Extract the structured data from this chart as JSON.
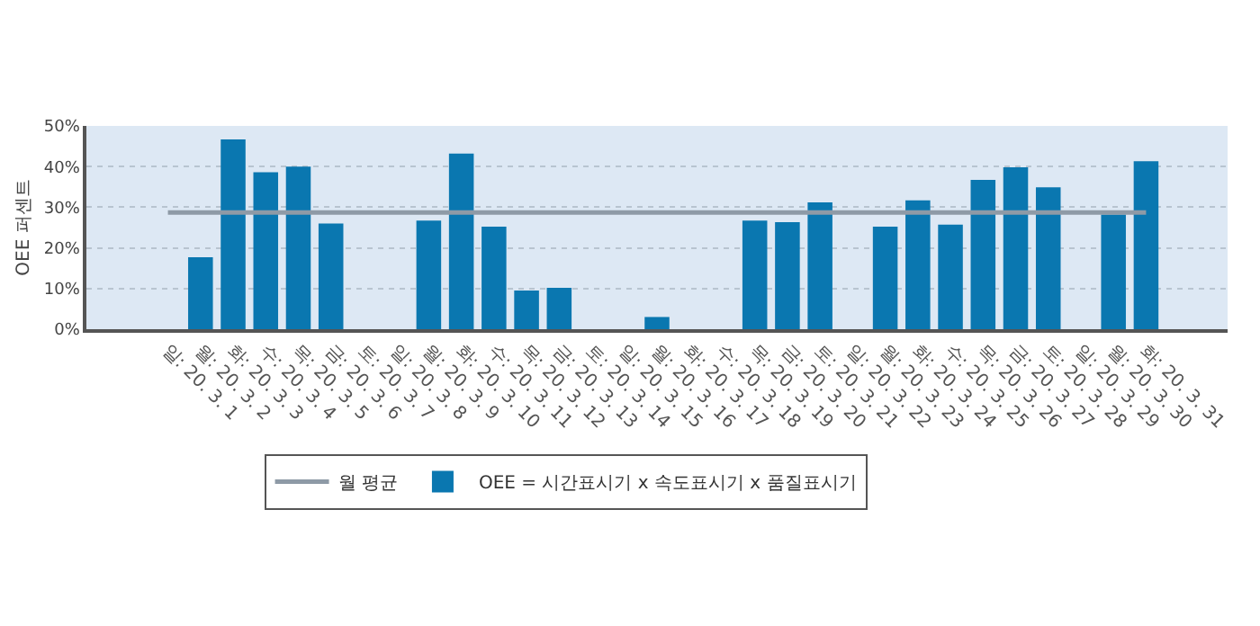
{
  "chart_data": {
    "type": "bar",
    "ylabel": "OEE 퍼센트",
    "categories": [
      "일: 20. 3. 1",
      "월: 20. 3. 2",
      "화: 20. 3. 3",
      "수: 20. 3. 4",
      "목: 20. 3. 5",
      "금: 20. 3. 6",
      "토: 20. 3. 7",
      "일: 20. 3. 8",
      "월: 20. 3. 9",
      "화: 20. 3. 10",
      "수: 20. 3. 11",
      "목: 20. 3. 12",
      "금: 20. 3. 13",
      "토: 20. 3. 14",
      "일: 20. 3. 15",
      "월: 20. 3. 16",
      "화: 20. 3. 17",
      "수: 20. 3. 18",
      "목: 20. 3. 19",
      "금: 20. 3. 20",
      "토: 20. 3. 21",
      "일: 20. 3. 22",
      "월: 20. 3. 23",
      "화: 20. 3. 24",
      "수: 20. 3. 25",
      "목: 20. 3. 26",
      "금: 20. 3. 27",
      "토: 20. 3. 28",
      "일: 20. 3. 29",
      "월: 20. 3. 30",
      "화: 20. 3. 31"
    ],
    "series": [
      {
        "name": "월 평균",
        "type": "line",
        "color": "#8e9aa6",
        "values": [
          28.7,
          28.7,
          28.7,
          28.7,
          28.7,
          28.7,
          28.7,
          28.7,
          28.7,
          28.7,
          28.7,
          28.7,
          28.7,
          28.7,
          28.7,
          28.7,
          28.7,
          28.7,
          28.7,
          28.7,
          28.7,
          28.7,
          28.7,
          28.7,
          28.7,
          28.7,
          28.7,
          28.7,
          28.7,
          28.7,
          28.7
        ]
      },
      {
        "name": "OEE = 시간표시기 x 속도표시기 x 품질표시기",
        "color": "#0a77b0",
        "values": [
          null,
          17.7,
          46.7,
          38.6,
          40,
          26,
          null,
          null,
          26.7,
          43.2,
          25.2,
          9.5,
          10.2,
          null,
          null,
          3,
          null,
          null,
          26.7,
          26.3,
          31.2,
          null,
          25.2,
          31.7,
          25.7,
          36.7,
          39.8,
          34.9,
          null,
          28.2,
          41.3
        ]
      }
    ],
    "ylim": [
      0,
      50
    ],
    "yticks": [
      {
        "value": 0,
        "label": "0%"
      },
      {
        "value": 10,
        "label": "10%"
      },
      {
        "value": 20,
        "label": "20%"
      },
      {
        "value": 30,
        "label": "30%"
      },
      {
        "value": 40,
        "label": "40%"
      },
      {
        "value": 50,
        "label": "50%"
      }
    ],
    "grid": "y",
    "legend": "bottom",
    "line_style": "solid",
    "marker": "none"
  }
}
